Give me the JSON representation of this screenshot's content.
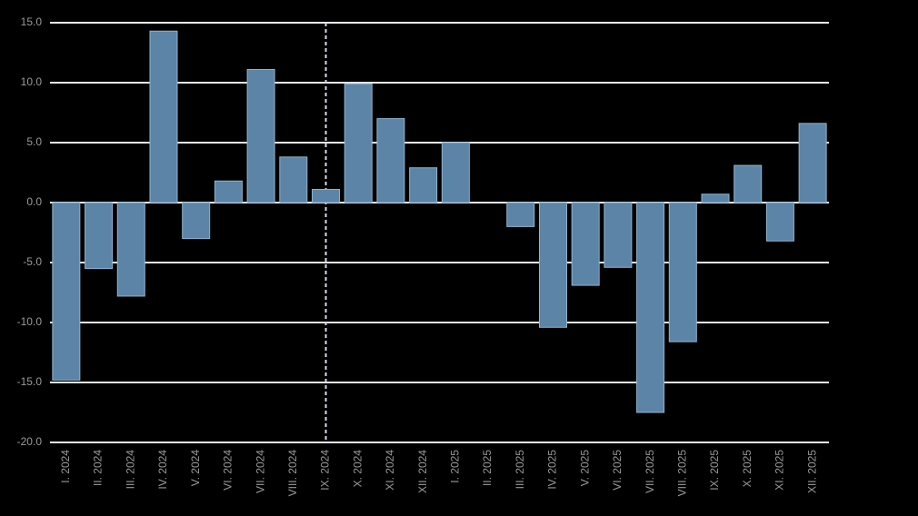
{
  "chart_data": {
    "type": "bar",
    "categories": [
      "I. 2024",
      "II. 2024",
      "III. 2024",
      "IV. 2024",
      "V. 2024",
      "VI. 2024",
      "VII. 2024",
      "VIII. 2024",
      "IX. 2024",
      "X. 2024",
      "XI. 2024",
      "XII. 2024",
      "I. 2025",
      "II. 2025",
      "III. 2025",
      "IV. 2025",
      "V. 2025",
      "VI. 2025",
      "VII. 2025",
      "VIII. 2025",
      "IX. 2025",
      "X. 2025",
      "XI. 2025",
      "XII. 2025"
    ],
    "values": [
      -14.8,
      -5.5,
      -7.8,
      14.3,
      -3.0,
      1.8,
      11.1,
      3.8,
      1.1,
      9.9,
      7.0,
      2.9,
      5.0,
      0,
      -2.0,
      -10.4,
      -6.9,
      -5.4,
      -17.5,
      -11.6,
      0.7,
      3.1,
      -3.2,
      6.6
    ],
    "color": "#5b84a6",
    "ylim": [
      -20,
      15
    ],
    "yticks": [
      {
        "value": -20,
        "label": "-20.0"
      },
      {
        "value": -15,
        "label": "-15.0"
      },
      {
        "value": -10,
        "label": "-10.0"
      },
      {
        "value": -5,
        "label": "-5.0"
      },
      {
        "value": 0,
        "label": "0.0"
      },
      {
        "value": 5,
        "label": "5.0"
      },
      {
        "value": 10,
        "label": "10.0"
      },
      {
        "value": 15,
        "label": "15.0"
      }
    ],
    "grid": true
  }
}
